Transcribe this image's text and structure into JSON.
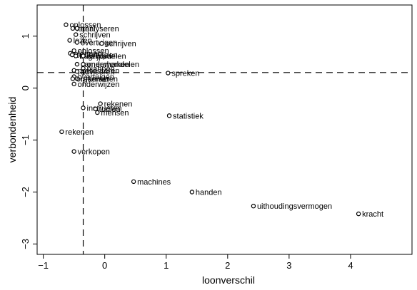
{
  "chart_data": {
    "type": "scatter",
    "xlabel": "loonverschil",
    "ylabel": "verbondenheid",
    "xlim": [
      -1.1,
      5.0
    ],
    "ylim": [
      -3.2,
      1.6
    ],
    "x_ticks": [
      -1,
      0,
      1,
      2,
      3,
      4
    ],
    "y_ticks": [
      1,
      0,
      -1,
      -2,
      -3
    ],
    "x_tick_labels": [
      "−1",
      "0",
      "1",
      "2",
      "3",
      "4"
    ],
    "y_tick_labels": [
      "1",
      "0",
      "−1",
      "−2",
      "−3"
    ],
    "reference_lines": {
      "vertical_x": -0.35,
      "horizontal_y": 0.3
    },
    "grid": false,
    "points": [
      {
        "label": "oplossen",
        "x": -0.63,
        "y": 1.22
      },
      {
        "label": "leren",
        "x": -0.52,
        "y": 1.15
      },
      {
        "label": "analyseren",
        "x": -0.45,
        "y": 1.15
      },
      {
        "label": "schrijven",
        "x": -0.47,
        "y": 1.03
      },
      {
        "label": "lezen",
        "x": -0.57,
        "y": 0.92
      },
      {
        "label": "overtuigen",
        "x": -0.45,
        "y": 0.88
      },
      {
        "label": "schrijven",
        "x": -0.05,
        "y": 0.86
      },
      {
        "label": "oplossen",
        "x": -0.5,
        "y": 0.72
      },
      {
        "label": "plannen",
        "x": -0.56,
        "y": 0.67
      },
      {
        "label": "onderwijzen",
        "x": -0.53,
        "y": 0.64
      },
      {
        "label": "begrijpen",
        "x": -0.47,
        "y": 0.62
      },
      {
        "label": "beoordelen",
        "x": -0.35,
        "y": 0.62
      },
      {
        "label": "samenwerken",
        "x": -0.45,
        "y": 0.46
      },
      {
        "label": "onderhandelen",
        "x": -0.35,
        "y": 0.46
      },
      {
        "label": "plannen",
        "x": -0.35,
        "y": 0.38
      },
      {
        "label": "presenteren",
        "x": -0.5,
        "y": 0.34
      },
      {
        "label": "adviseren",
        "x": -0.45,
        "y": 0.32
      },
      {
        "label": "overtuigen",
        "x": -0.5,
        "y": 0.22
      },
      {
        "label": "rekenen",
        "x": -0.45,
        "y": 0.18
      },
      {
        "label": "organiseren",
        "x": -0.52,
        "y": 0.18
      },
      {
        "label": "onderwijzen",
        "x": -0.5,
        "y": 0.08
      },
      {
        "label": "spreken",
        "x": 1.03,
        "y": 0.29
      },
      {
        "label": "rekenen",
        "x": -0.07,
        "y": -0.3
      },
      {
        "label": "instrueren",
        "x": -0.35,
        "y": -0.38
      },
      {
        "label": "toolen",
        "x": -0.15,
        "y": -0.4
      },
      {
        "label": "mensen",
        "x": -0.12,
        "y": -0.47
      },
      {
        "label": "statistiek",
        "x": 1.05,
        "y": -0.53
      },
      {
        "label": "rekenen",
        "x": -0.7,
        "y": -0.84
      },
      {
        "label": "verkopen",
        "x": -0.5,
        "y": -1.22
      },
      {
        "label": "machines",
        "x": 0.47,
        "y": -1.8
      },
      {
        "label": "handen",
        "x": 1.42,
        "y": -2.0
      },
      {
        "label": "uithoudingsvermogen",
        "x": 2.42,
        "y": -2.27
      },
      {
        "label": "kracht",
        "x": 4.13,
        "y": -2.42
      }
    ]
  }
}
